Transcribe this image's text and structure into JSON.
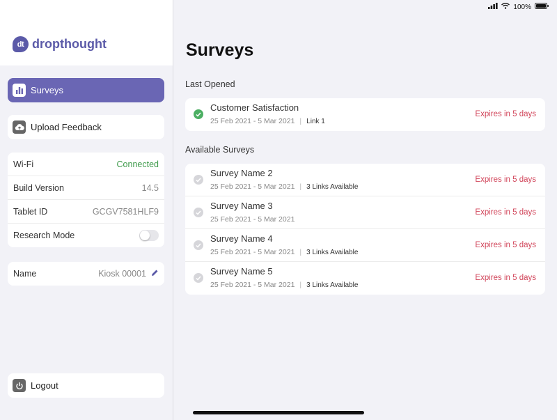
{
  "status_bar": {
    "battery": "100%"
  },
  "brand": {
    "logo_text": "dt",
    "name": "dropthought"
  },
  "sidebar": {
    "nav": [
      {
        "label": "Surveys",
        "icon": "bar-chart-icon",
        "active": true
      },
      {
        "label": "Upload Feedback",
        "icon": "cloud-upload-icon",
        "active": false
      }
    ],
    "info": [
      {
        "key": "Wi-Fi",
        "value": "Connected"
      },
      {
        "key": "Build Version",
        "value": "14.5"
      },
      {
        "key": "Tablet ID",
        "value": "GCGV7581HLF9"
      },
      {
        "key": "Research Mode",
        "value": ""
      }
    ],
    "name_row": {
      "key": "Name",
      "value": "Kiosk 00001"
    },
    "logout": {
      "label": "Logout",
      "icon": "power-icon"
    }
  },
  "main": {
    "title": "Surveys",
    "last_opened_label": "Last Opened",
    "available_label": "Available Surveys",
    "last_opened": [
      {
        "name": "Customer Satisfaction",
        "dates": "25 Feb 2021 - 5 Mar 2021",
        "links": "Link 1",
        "expiry": "Expires in 5 days"
      }
    ],
    "available": [
      {
        "name": "Survey Name 2",
        "dates": "25 Feb 2021 - 5 Mar 2021",
        "links": "3 Links Available",
        "expiry": "Expires in 5 days"
      },
      {
        "name": "Survey Name 3",
        "dates": "25 Feb 2021 - 5 Mar 2021",
        "links": "",
        "expiry": "Expires in 5 days"
      },
      {
        "name": "Survey Name 4",
        "dates": "25 Feb 2021 - 5 Mar 2021",
        "links": "3 Links Available",
        "expiry": "Expires in 5 days"
      },
      {
        "name": "Survey Name 5",
        "dates": "25 Feb 2021 - 5 Mar 2021",
        "links": "3 Links Available",
        "expiry": "Expires in 5 days"
      }
    ]
  },
  "colors": {
    "accent": "#6a66b4",
    "connected": "#3d9a4a",
    "expiry": "#d1455a",
    "check_done": "#4caf63"
  }
}
